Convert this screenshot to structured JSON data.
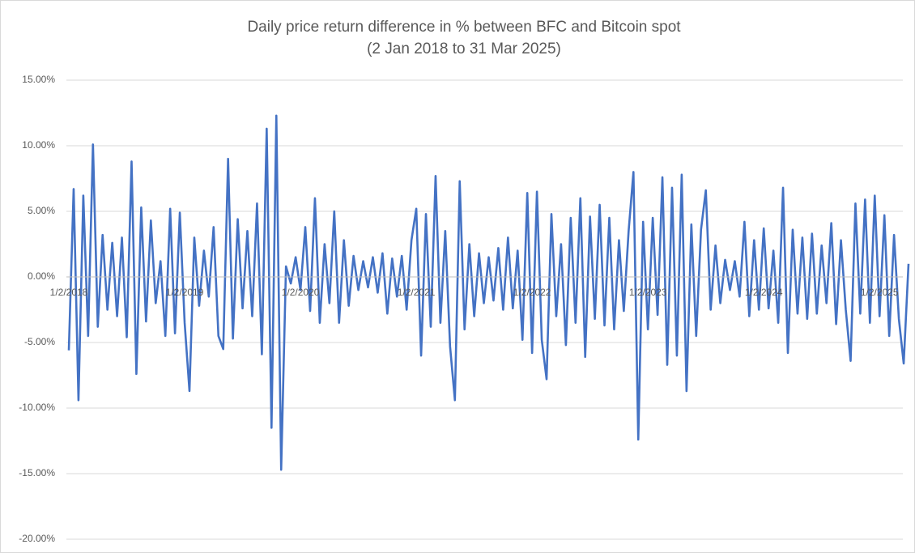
{
  "chart_data": {
    "type": "line",
    "title": "Daily price return difference in % between BFC and Bitcoin spot",
    "subtitle": "(2 Jan 2018 to 31 Mar 2025)",
    "color": "#4472c4",
    "categories": [
      "1/2/2018",
      null,
      null,
      null,
      null,
      null,
      null,
      null,
      null,
      null,
      null,
      null,
      null,
      null,
      null,
      null,
      null,
      null,
      null,
      null,
      null,
      null,
      null,
      null,
      "1/2/2019",
      null,
      null,
      null,
      null,
      null,
      null,
      null,
      null,
      null,
      null,
      null,
      null,
      null,
      null,
      null,
      null,
      null,
      null,
      null,
      null,
      null,
      null,
      null,
      "1/2/2020",
      null,
      null,
      null,
      null,
      null,
      null,
      null,
      null,
      null,
      null,
      null,
      null,
      null,
      null,
      null,
      null,
      null,
      null,
      null,
      null,
      null,
      null,
      null,
      "1/2/2021",
      null,
      null,
      null,
      null,
      null,
      null,
      null,
      null,
      null,
      null,
      null,
      null,
      null,
      null,
      null,
      null,
      null,
      null,
      null,
      null,
      null,
      null,
      null,
      "1/2/2022",
      null,
      null,
      null,
      null,
      null,
      null,
      null,
      null,
      null,
      null,
      null,
      null,
      null,
      null,
      null,
      null,
      null,
      null,
      null,
      null,
      null,
      null,
      null,
      "1/2/2023",
      null,
      null,
      null,
      null,
      null,
      null,
      null,
      null,
      null,
      null,
      null,
      null,
      null,
      null,
      null,
      null,
      null,
      null,
      null,
      null,
      null,
      null,
      null,
      "1/2/2024",
      null,
      null,
      null,
      null,
      null,
      null,
      null,
      null,
      null,
      null,
      null,
      null,
      null,
      null,
      null,
      null,
      null,
      null,
      null,
      null,
      null,
      null,
      null,
      "1/2/2025",
      null,
      null,
      null,
      null,
      null,
      null
    ],
    "values": [
      -5.6,
      6.7,
      -9.4,
      6.2,
      -4.5,
      10.1,
      -3.8,
      3.2,
      -2.5,
      2.6,
      -3.0,
      3.0,
      -4.6,
      8.8,
      -7.4,
      5.3,
      -3.4,
      4.3,
      -2.0,
      1.2,
      -4.5,
      5.2,
      -4.3,
      4.9,
      -3.5,
      -8.7,
      3.0,
      -2.2,
      2.0,
      -1.5,
      3.8,
      -4.5,
      -5.5,
      9.0,
      -4.7,
      4.4,
      -2.4,
      3.5,
      -3.0,
      5.6,
      -5.9,
      11.3,
      -11.5,
      12.3,
      -14.7,
      0.8,
      -0.5,
      1.5,
      -1.0,
      3.8,
      -2.6,
      6.0,
      -3.5,
      2.5,
      -2.0,
      5.0,
      -3.5,
      2.8,
      -2.2,
      1.6,
      -1.0,
      1.2,
      -0.8,
      1.5,
      -1.2,
      1.8,
      -2.8,
      1.4,
      -1.5,
      1.6,
      -2.5,
      2.8,
      5.2,
      -6.0,
      4.8,
      -3.8,
      7.7,
      -3.5,
      3.5,
      -5.3,
      -9.4,
      7.3,
      -4.0,
      2.5,
      -3.0,
      1.8,
      -2.0,
      1.5,
      -1.8,
      2.2,
      -2.5,
      3.0,
      -2.4,
      2.0,
      -4.8,
      6.4,
      -5.8,
      6.5,
      -4.8,
      -7.8,
      4.8,
      -3.0,
      2.5,
      -5.2,
      4.5,
      -3.5,
      6.0,
      -6.1,
      4.6,
      -3.2,
      5.5,
      -3.7,
      4.5,
      -4.0,
      2.8,
      -2.6,
      3.5,
      8.0,
      -12.4,
      4.2,
      -4.0,
      4.5,
      -2.9,
      7.6,
      -6.7,
      6.8,
      -6.0,
      7.8,
      -8.7,
      4.0,
      -4.5,
      3.6,
      6.6,
      -2.5,
      2.4,
      -2.0,
      1.3,
      -1.0,
      1.2,
      -1.5,
      4.2,
      -3.0,
      2.8,
      -2.5,
      3.7,
      -2.4,
      2.0,
      -3.5,
      6.8,
      -5.8,
      3.6,
      -2.8,
      3.0,
      -3.2,
      3.3,
      -2.8,
      2.4,
      -2.0,
      4.1,
      -3.6,
      2.8,
      -2.5,
      -6.4,
      5.6,
      -2.8,
      5.9,
      -3.5,
      6.2,
      -3.0,
      4.7,
      -4.5,
      3.2,
      -3.2,
      -6.6,
      1.0
    ],
    "ylim": [
      -20,
      15
    ],
    "yticks": [
      {
        "value": -20,
        "label": "-20.00%"
      },
      {
        "value": -15,
        "label": "-15.00%"
      },
      {
        "value": -10,
        "label": "-10.00%"
      },
      {
        "value": -5,
        "label": "-5.00%"
      },
      {
        "value": 0,
        "label": "0.00%"
      },
      {
        "value": 5,
        "label": "5.00%"
      },
      {
        "value": 10,
        "label": "10.00%"
      },
      {
        "value": 15,
        "label": "15.00%"
      }
    ],
    "grid": true
  }
}
